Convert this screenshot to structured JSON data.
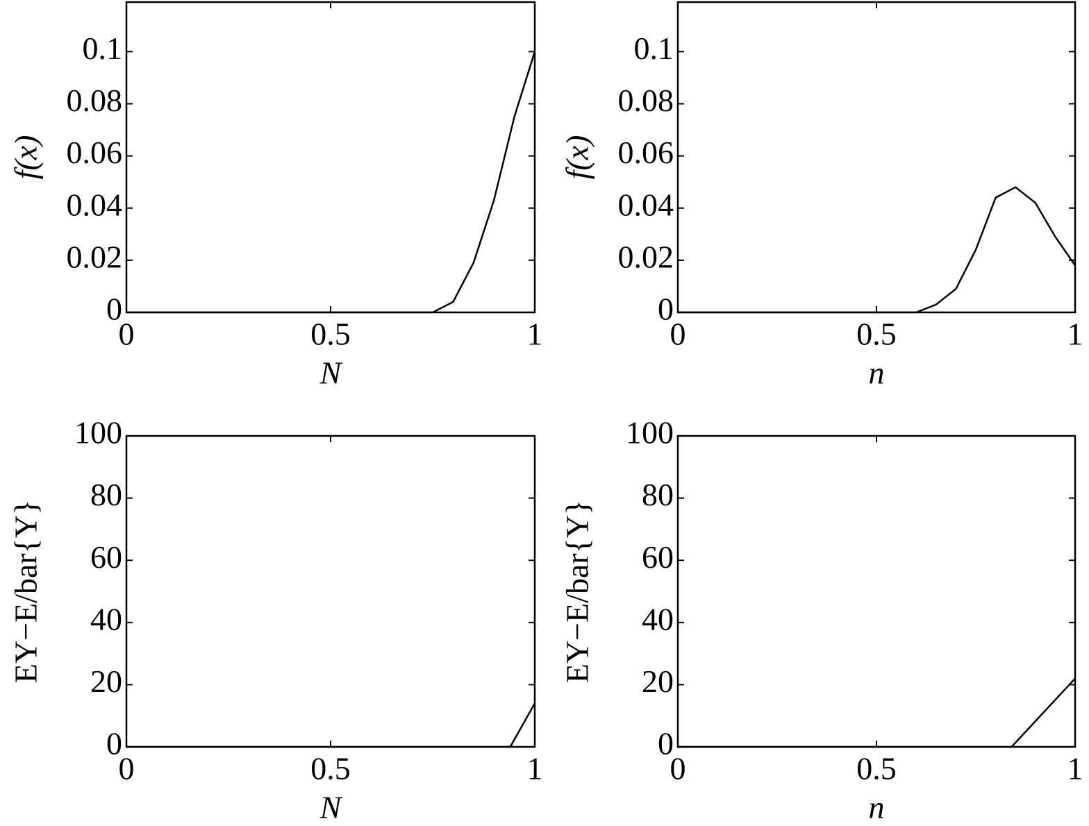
{
  "chart_data": [
    {
      "type": "line",
      "xlabel": "N",
      "ylabel": "f(x)",
      "x": [
        0,
        0.5,
        0.75,
        0.8,
        0.85,
        0.9,
        0.95,
        1.0
      ],
      "values": [
        0,
        0,
        0,
        0.004,
        0.019,
        0.043,
        0.075,
        0.1
      ],
      "color": "#000000",
      "xlim": [
        0,
        1
      ],
      "ylim": [
        0,
        0.119
      ],
      "xticks": [
        0,
        0.5,
        1
      ],
      "yticks": [
        0,
        0.02,
        0.04,
        0.06,
        0.08,
        0.1
      ]
    },
    {
      "type": "line",
      "xlabel": "n",
      "ylabel": "f(x)",
      "x": [
        0,
        0.5,
        0.6,
        0.65,
        0.7,
        0.75,
        0.8,
        0.85,
        0.9,
        0.95,
        1.0
      ],
      "values": [
        0,
        0,
        0,
        0.003,
        0.009,
        0.024,
        0.044,
        0.048,
        0.042,
        0.029,
        0.018
      ],
      "color": "#000000",
      "xlim": [
        0,
        1
      ],
      "ylim": [
        0,
        0.119
      ],
      "xticks": [
        0,
        0.5,
        1
      ],
      "yticks": [
        0,
        0.02,
        0.04,
        0.06,
        0.08,
        0.1
      ]
    },
    {
      "type": "line",
      "xlabel": "N",
      "ylabel": "EY−E/bar{Y}",
      "x": [
        0,
        0.5,
        0.94,
        0.97,
        1.0
      ],
      "values": [
        0,
        0,
        0,
        7,
        14
      ],
      "color": "#000000",
      "xlim": [
        0,
        1
      ],
      "ylim": [
        0,
        100
      ],
      "xticks": [
        0,
        0.5,
        1
      ],
      "yticks": [
        0,
        20,
        40,
        60,
        80,
        100
      ]
    },
    {
      "type": "line",
      "xlabel": "n",
      "ylabel": "EY−E/bar{Y}",
      "x": [
        0,
        0.5,
        0.84,
        0.92,
        1.0
      ],
      "values": [
        0,
        0,
        0,
        11,
        22
      ],
      "color": "#000000",
      "xlim": [
        0,
        1
      ],
      "ylim": [
        0,
        100
      ],
      "xticks": [
        0,
        0.5,
        1
      ],
      "yticks": [
        0,
        20,
        40,
        60,
        80,
        100
      ]
    }
  ]
}
